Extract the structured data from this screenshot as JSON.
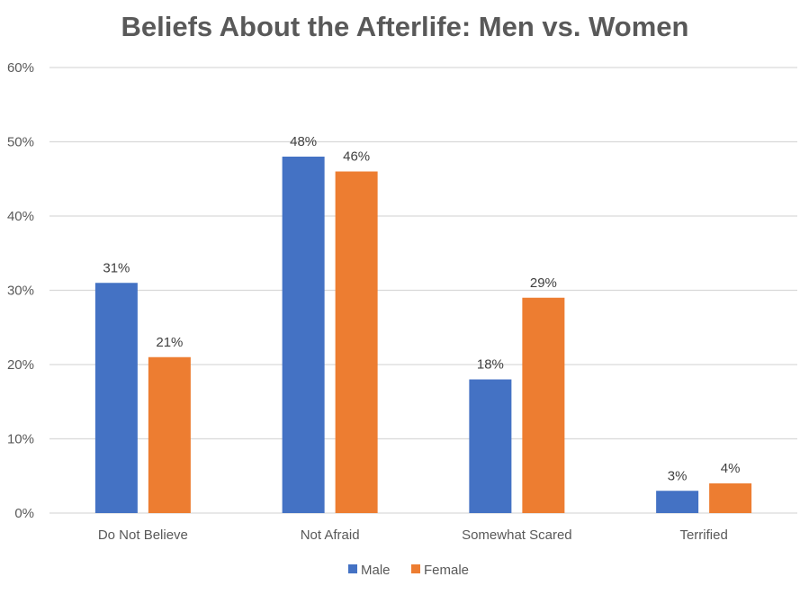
{
  "chart_data": {
    "type": "bar",
    "title": "Beliefs About the Afterlife: Men vs. Women",
    "xlabel": "",
    "ylabel": "",
    "categories": [
      "Do Not Believe",
      "Not Afraid",
      "Somewhat Scared",
      "Terrified"
    ],
    "series": [
      {
        "name": "Male",
        "color": "#4472C4",
        "values": [
          31,
          48,
          18,
          3
        ],
        "labels": [
          "31%",
          "48%",
          "18%",
          "3%"
        ]
      },
      {
        "name": "Female",
        "color": "#ED7D31",
        "values": [
          21,
          46,
          29,
          4
        ],
        "labels": [
          "21%",
          "46%",
          "29%",
          "4%"
        ]
      }
    ],
    "ylim": [
      0,
      60
    ],
    "yticks": [
      0,
      10,
      20,
      30,
      40,
      50,
      60
    ],
    "ytick_labels": [
      "0%",
      "10%",
      "20%",
      "30%",
      "40%",
      "50%",
      "60%"
    ],
    "grid": true,
    "legend_position": "bottom",
    "colors": {
      "grid": "#D9D9D9",
      "text": "#595959"
    }
  }
}
